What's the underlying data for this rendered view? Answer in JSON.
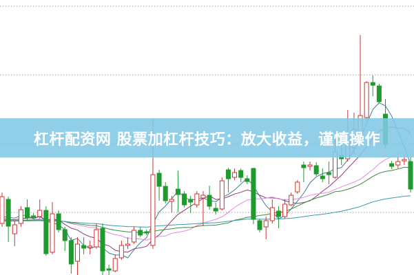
{
  "banner": {
    "title": "杠杆配资网 股票加杠杆技巧：放大收益，谨慎操作"
  },
  "colors": {
    "up": "#d03030",
    "down": "#1e9a2e",
    "banner": "#82c8e6",
    "grid": "#999999"
  },
  "chart_data": {
    "type": "candlestick",
    "title": "",
    "xlabel": "",
    "ylabel": "",
    "grid": "dotted horizontal",
    "grid_levels": [
      100.25,
      75.25,
      50.25,
      25.25
    ],
    "ylim": [
      0,
      102
    ],
    "moving_averages": [
      {
        "period": 5,
        "color": "#3a7f95"
      },
      {
        "period": 10,
        "color": "#8a3a78"
      },
      {
        "period": 20,
        "color": "#e58ae0"
      },
      {
        "period": 30,
        "color": "#3c8a3c"
      },
      {
        "period": 60,
        "color": "#3a9aae"
      }
    ],
    "candles_ohlc": [
      [
        21.25,
        31,
        32.5,
        20
      ],
      [
        30,
        20.25,
        31,
        14.5
      ],
      [
        17.5,
        20.75,
        22,
        13
      ],
      [
        21.25,
        26.25,
        27.5,
        20
      ],
      [
        27,
        23.25,
        30,
        22.5
      ],
      [
        24,
        23.5,
        25,
        23
      ],
      [
        23.75,
        26,
        30,
        23
      ],
      [
        26,
        10.25,
        27.5,
        9.5
      ],
      [
        10.75,
        24.75,
        29,
        10
      ],
      [
        24.75,
        19,
        26,
        18
      ],
      [
        19,
        15,
        20,
        11.25
      ],
      [
        15,
        6.5,
        16.25,
        3
      ],
      [
        7.5,
        13.75,
        16.25,
        0.75
      ],
      [
        13.25,
        12.25,
        16.25,
        10
      ],
      [
        12.5,
        13,
        15,
        10
      ],
      [
        12.75,
        19,
        21.25,
        12
      ],
      [
        19.5,
        4,
        21.25,
        2.5
      ],
      [
        4.75,
        4.25,
        6.25,
        0
      ],
      [
        4,
        8.5,
        10,
        3.5
      ],
      [
        8.75,
        13.25,
        15,
        8
      ],
      [
        13.25,
        13.75,
        16.25,
        12
      ],
      [
        14.5,
        18.75,
        20,
        13.75
      ],
      [
        18.75,
        17,
        20,
        16.25
      ],
      [
        18.25,
        17.75,
        19,
        17
      ],
      [
        13.25,
        39,
        59.25,
        12
      ],
      [
        39.5,
        34.75,
        40.75,
        29.5
      ],
      [
        34.75,
        29.5,
        36.25,
        28.5
      ],
      [
        29.25,
        30,
        31.25,
        25.25
      ],
      [
        33.75,
        31.75,
        40.5,
        25.25
      ],
      [
        32,
        28,
        33,
        27
      ],
      [
        30,
        29,
        31.25,
        25
      ],
      [
        28,
        32,
        33,
        27
      ],
      [
        30.5,
        31.5,
        33,
        20.25
      ],
      [
        31.5,
        27.5,
        35,
        26.25
      ],
      [
        26.75,
        25.75,
        28.75,
        24.5
      ],
      [
        26.5,
        36.75,
        38,
        26
      ],
      [
        40.75,
        37.5,
        41.5,
        32.5
      ],
      [
        38,
        39.75,
        41.25,
        37
      ],
      [
        40.5,
        38,
        41.25,
        36.25
      ],
      [
        37.5,
        36.5,
        38.75,
        35.5
      ],
      [
        41.25,
        22.75,
        41.5,
        21
      ],
      [
        22.25,
        19,
        23,
        18
      ],
      [
        20,
        22.25,
        23.75,
        15.5
      ],
      [
        22.25,
        27,
        30,
        21.25
      ],
      [
        25.75,
        23.75,
        27.5,
        19.5
      ],
      [
        23.75,
        28.25,
        30,
        23
      ],
      [
        28,
        31.5,
        32.5,
        27.5
      ],
      [
        32.75,
        36.25,
        37,
        32
      ],
      [
        42.5,
        41.5,
        43.75,
        36.25
      ],
      [
        42,
        42.5,
        43.75,
        40.5
      ],
      [
        42.25,
        39.25,
        43.5,
        38.5
      ],
      [
        38.5,
        37.5,
        41.25,
        36.25
      ],
      [
        39.75,
        39,
        43.75,
        35.5
      ],
      [
        38,
        47.25,
        52.5,
        37.5
      ],
      [
        46,
        44.75,
        50,
        42.5
      ],
      [
        44.75,
        53.5,
        62.5,
        43.75
      ],
      [
        48.75,
        55.5,
        61.5,
        46.25
      ],
      [
        52.5,
        60.5,
        89.75,
        51.25
      ],
      [
        59.75,
        72.5,
        73,
        58.75
      ],
      [
        72.5,
        71.5,
        75,
        67.5
      ],
      [
        71.25,
        65.5,
        72,
        65
      ],
      [
        61,
        50,
        66.5,
        48.75
      ],
      [
        43,
        42,
        44,
        41
      ],
      [
        42.5,
        43.75,
        45.5,
        41.25
      ],
      [
        44,
        44.5,
        46.25,
        42.5
      ],
      [
        43.75,
        33.75,
        45.5,
        32.5
      ]
    ]
  }
}
